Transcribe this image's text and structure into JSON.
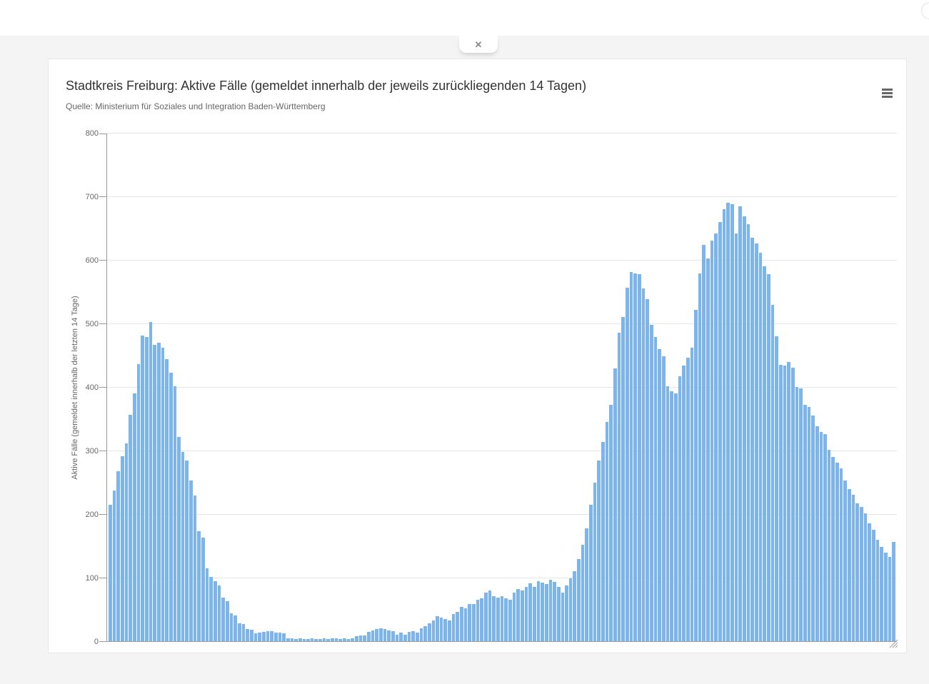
{
  "top_bar": {
    "close_label": "✕"
  },
  "chart": {
    "title": "Stadtkreis Freiburg: Aktive Fälle (gemeldet innerhalb der jeweils zurückliegenden 14 Tagen)",
    "subtitle": "Quelle: Ministerium für Soziales und Integration Baden-Württemberg",
    "y_axis_title": "Aktive Fälle (gemeldet innerhalb der letzten 14 Tage)"
  },
  "icons": {
    "menu": "hamburger-context-menu",
    "close": "x-cross",
    "resize": "diagonal-grip-lines"
  },
  "colors": {
    "bar": "#7cb5ec",
    "grid": "#e6e6e6",
    "axis": "#999999",
    "title": "#333333",
    "subtitle": "#666666",
    "page_bg": "#f4f4f4",
    "card_bg": "#ffffff"
  },
  "chart_data": {
    "type": "bar",
    "title": "Stadtkreis Freiburg: Aktive Fälle (gemeldet innerhalb der jeweils zurückliegenden 14 Tagen)",
    "subtitle": "Quelle: Ministerium für Soziales und Integration Baden-Württemberg",
    "xlabel": "",
    "ylabel": "Aktive Fälle (gemeldet innerhalb der letzten 14 Tage)",
    "ylim": [
      0,
      800
    ],
    "yticks": [
      0,
      100,
      200,
      300,
      400,
      500,
      600,
      700,
      800
    ],
    "grid": true,
    "x_axis_labels_visible": false,
    "legend": "none",
    "values": [
      215,
      237,
      268,
      292,
      312,
      357,
      390,
      437,
      482,
      479,
      503,
      467,
      470,
      463,
      445,
      423,
      402,
      322,
      298,
      285,
      253,
      230,
      173,
      163,
      115,
      101,
      94,
      88,
      69,
      63,
      44,
      40,
      28,
      27,
      19,
      18,
      12,
      14,
      15,
      16,
      16,
      14,
      13,
      12,
      5,
      4,
      3,
      5,
      3,
      3,
      4,
      3,
      3,
      4,
      3,
      4,
      4,
      3,
      4,
      3,
      5,
      8,
      9,
      9,
      15,
      17,
      19,
      20,
      19,
      17,
      16,
      10,
      13,
      10,
      15,
      16,
      13,
      20,
      24,
      28,
      33,
      39,
      37,
      35,
      33,
      43,
      46,
      54,
      52,
      59,
      58,
      65,
      67,
      76,
      80,
      71,
      69,
      71,
      67,
      65,
      76,
      82,
      80,
      85,
      91,
      86,
      95,
      92,
      90,
      97,
      93,
      86,
      76,
      88,
      99,
      110,
      129,
      152,
      178,
      215,
      250,
      285,
      314,
      346,
      372,
      430,
      486,
      511,
      557,
      582,
      580,
      578,
      556,
      539,
      498,
      479,
      460,
      449,
      402,
      394,
      391,
      417,
      434,
      447,
      462,
      522,
      580,
      625,
      603,
      631,
      642,
      661,
      681,
      691,
      689,
      642,
      685,
      670,
      657,
      636,
      627,
      612,
      591,
      578,
      530,
      480,
      436,
      434,
      440,
      431,
      401,
      398,
      373,
      369,
      356,
      339,
      330,
      326,
      302,
      290,
      281,
      272,
      253,
      240,
      231,
      217,
      212,
      201,
      186,
      175,
      160,
      148,
      139,
      133,
      156
    ]
  }
}
